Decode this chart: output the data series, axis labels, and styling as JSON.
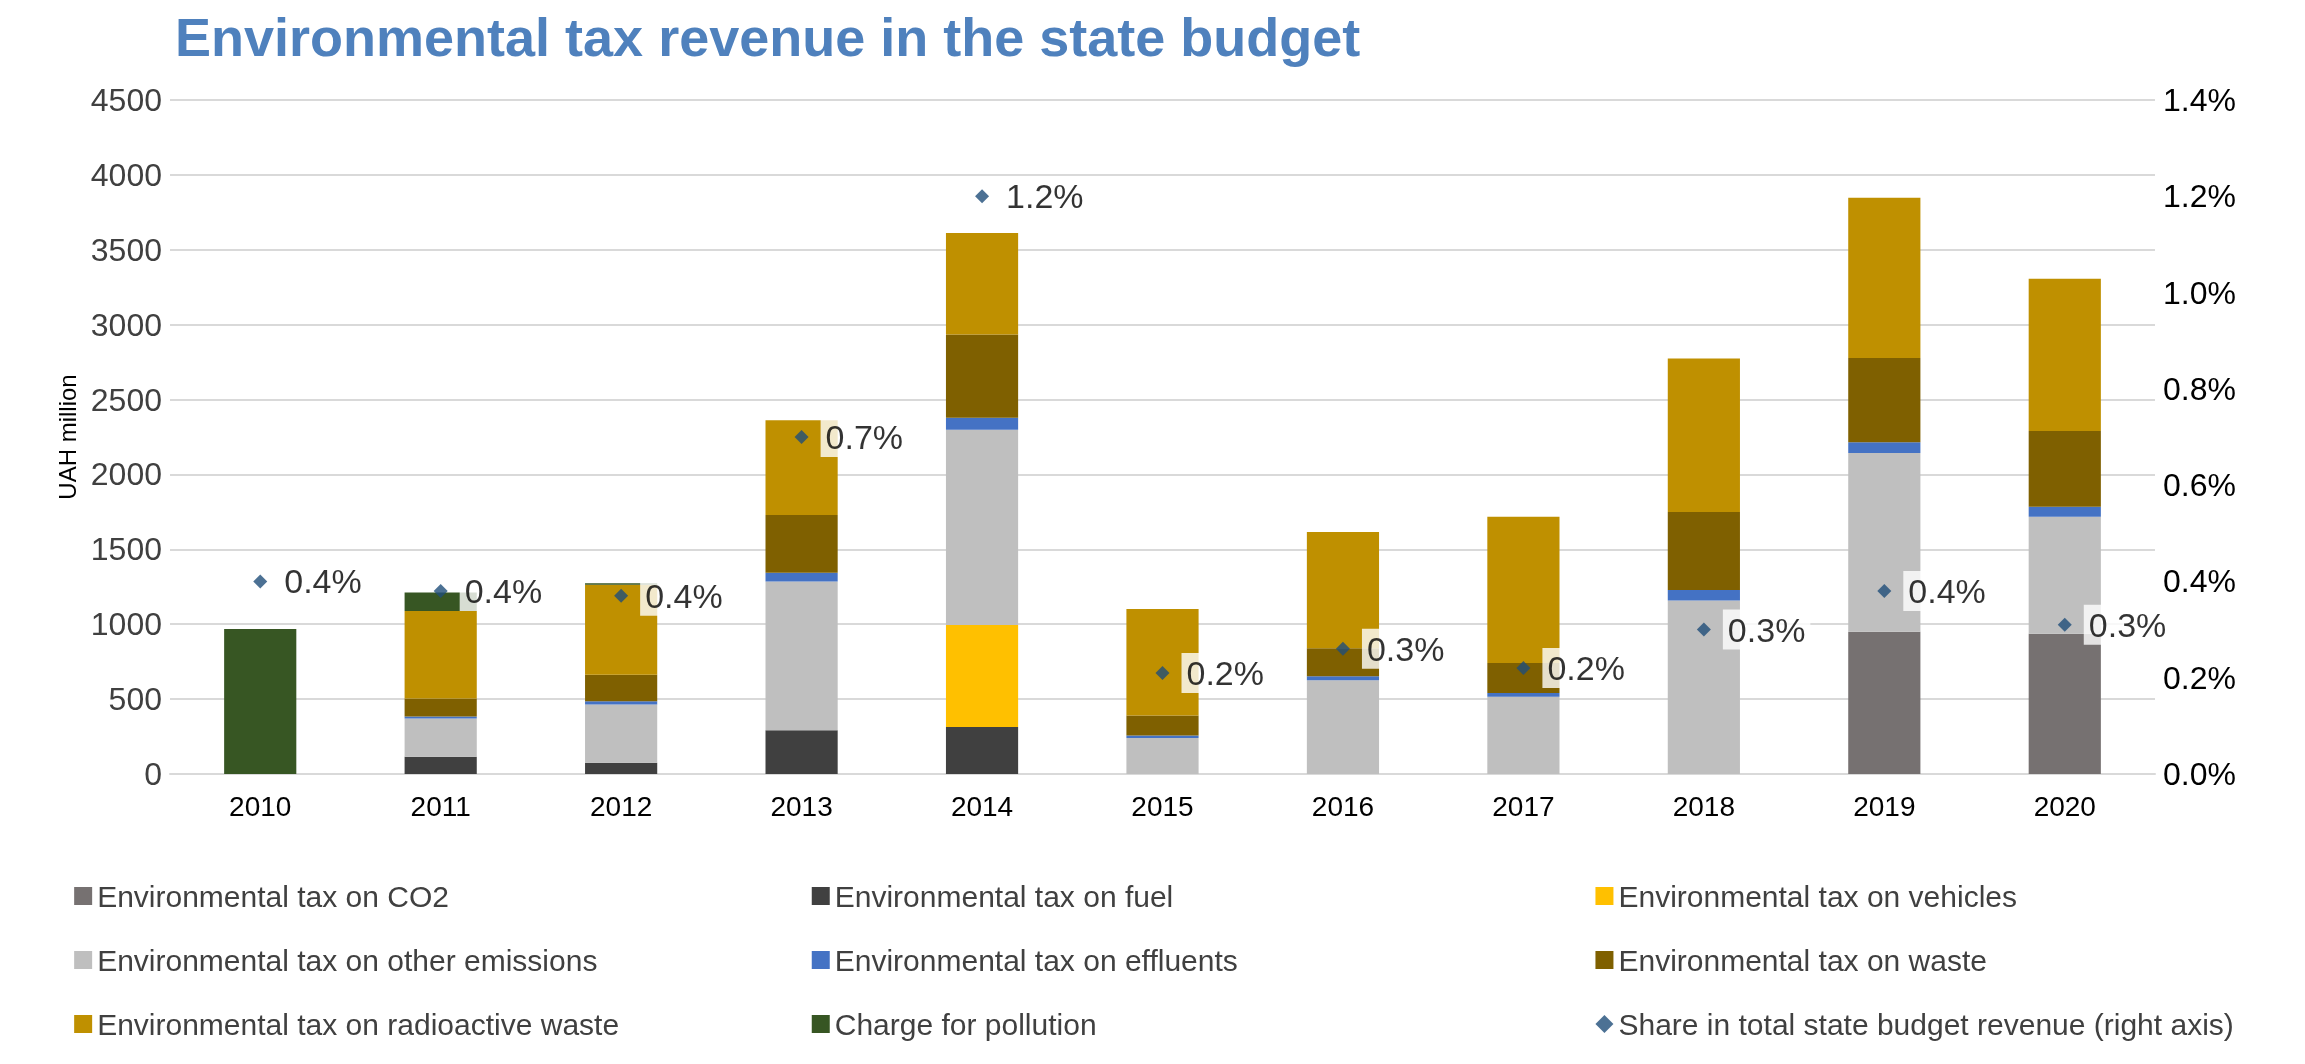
{
  "chart_data": {
    "type": "bar",
    "title": "Environmental tax revenue in the state budget",
    "ylabel": "UAH million",
    "categories": [
      "2010",
      "2011",
      "2012",
      "2013",
      "2014",
      "2015",
      "2016",
      "2017",
      "2018",
      "2019",
      "2020"
    ],
    "stacked": true,
    "series": [
      {
        "name": "Environmental tax on CO2",
        "color": "#767171",
        "values": [
          null,
          null,
          null,
          null,
          null,
          null,
          null,
          null,
          null,
          950,
          937
        ]
      },
      {
        "name": "Environmental tax on fuel",
        "color": "#404040",
        "values": [
          null,
          115,
          75,
          292,
          314,
          null,
          null,
          null,
          null,
          null,
          null
        ]
      },
      {
        "name": "Environmental tax on vehicles",
        "color": "#ffc000",
        "values": [
          null,
          null,
          null,
          null,
          681,
          null,
          null,
          null,
          null,
          null,
          null
        ]
      },
      {
        "name": "Environmental tax on other emissions",
        "color": "#bfbfbf",
        "values": [
          null,
          256,
          389,
          994,
          1304,
          240,
          626,
          515,
          1158,
          1194,
          781
        ]
      },
      {
        "name": "Environmental tax on effluents",
        "color": "#4472c4",
        "values": [
          null,
          13,
          22,
          58,
          79,
          17,
          26,
          26,
          71,
          71,
          66
        ]
      },
      {
        "name": "Environmental tax on waste",
        "color": "#7f6000",
        "values": [
          null,
          120,
          177,
          385,
          557,
          134,
          187,
          200,
          520,
          563,
          506
        ]
      },
      {
        "name": "Environmental tax on radioactive waste",
        "color": "#bf9000",
        "values": [
          null,
          584,
          601,
          632,
          677,
          710,
          777,
          977,
          1025,
          1070,
          1017
        ]
      },
      {
        "name": "Charge for pollution",
        "color": "#375623",
        "values": [
          968,
          123,
          9,
          null,
          null,
          null,
          null,
          null,
          null,
          null,
          null
        ]
      },
      {
        "name": "Share in total state budget revenue (right axis)",
        "type": "scatter",
        "axis": "y2",
        "marker": "diamond",
        "color": "#1f4e79",
        "values": [
          0.4,
          0.38,
          0.37,
          0.7,
          1.2,
          0.21,
          0.26,
          0.22,
          0.3,
          0.38,
          0.31
        ],
        "value_labels": [
          "0.4%",
          "0.4%",
          "0.4%",
          "0.7%",
          "1.2%",
          "0.2%",
          "0.3%",
          "0.2%",
          "0.3%",
          "0.4%",
          "0.3%"
        ]
      }
    ],
    "ylim": [
      0,
      4500
    ],
    "yticks": [
      0,
      500,
      1000,
      1500,
      2000,
      2500,
      3000,
      3500,
      4000,
      4500
    ],
    "y2lim": [
      0,
      1.4
    ],
    "y2ticks": [
      {
        "value": 0,
        "label": "0.0%"
      },
      {
        "value": 0.2,
        "label": "0.2%"
      },
      {
        "value": 0.4,
        "label": "0.4%"
      },
      {
        "value": 0.6,
        "label": "0.6%"
      },
      {
        "value": 0.8,
        "label": "0.8%"
      },
      {
        "value": 1.0,
        "label": "1.0%"
      },
      {
        "value": 1.2,
        "label": "1.2%"
      },
      {
        "value": 1.4,
        "label": "1.4%"
      }
    ],
    "grid": "y",
    "legend": "bottom"
  }
}
